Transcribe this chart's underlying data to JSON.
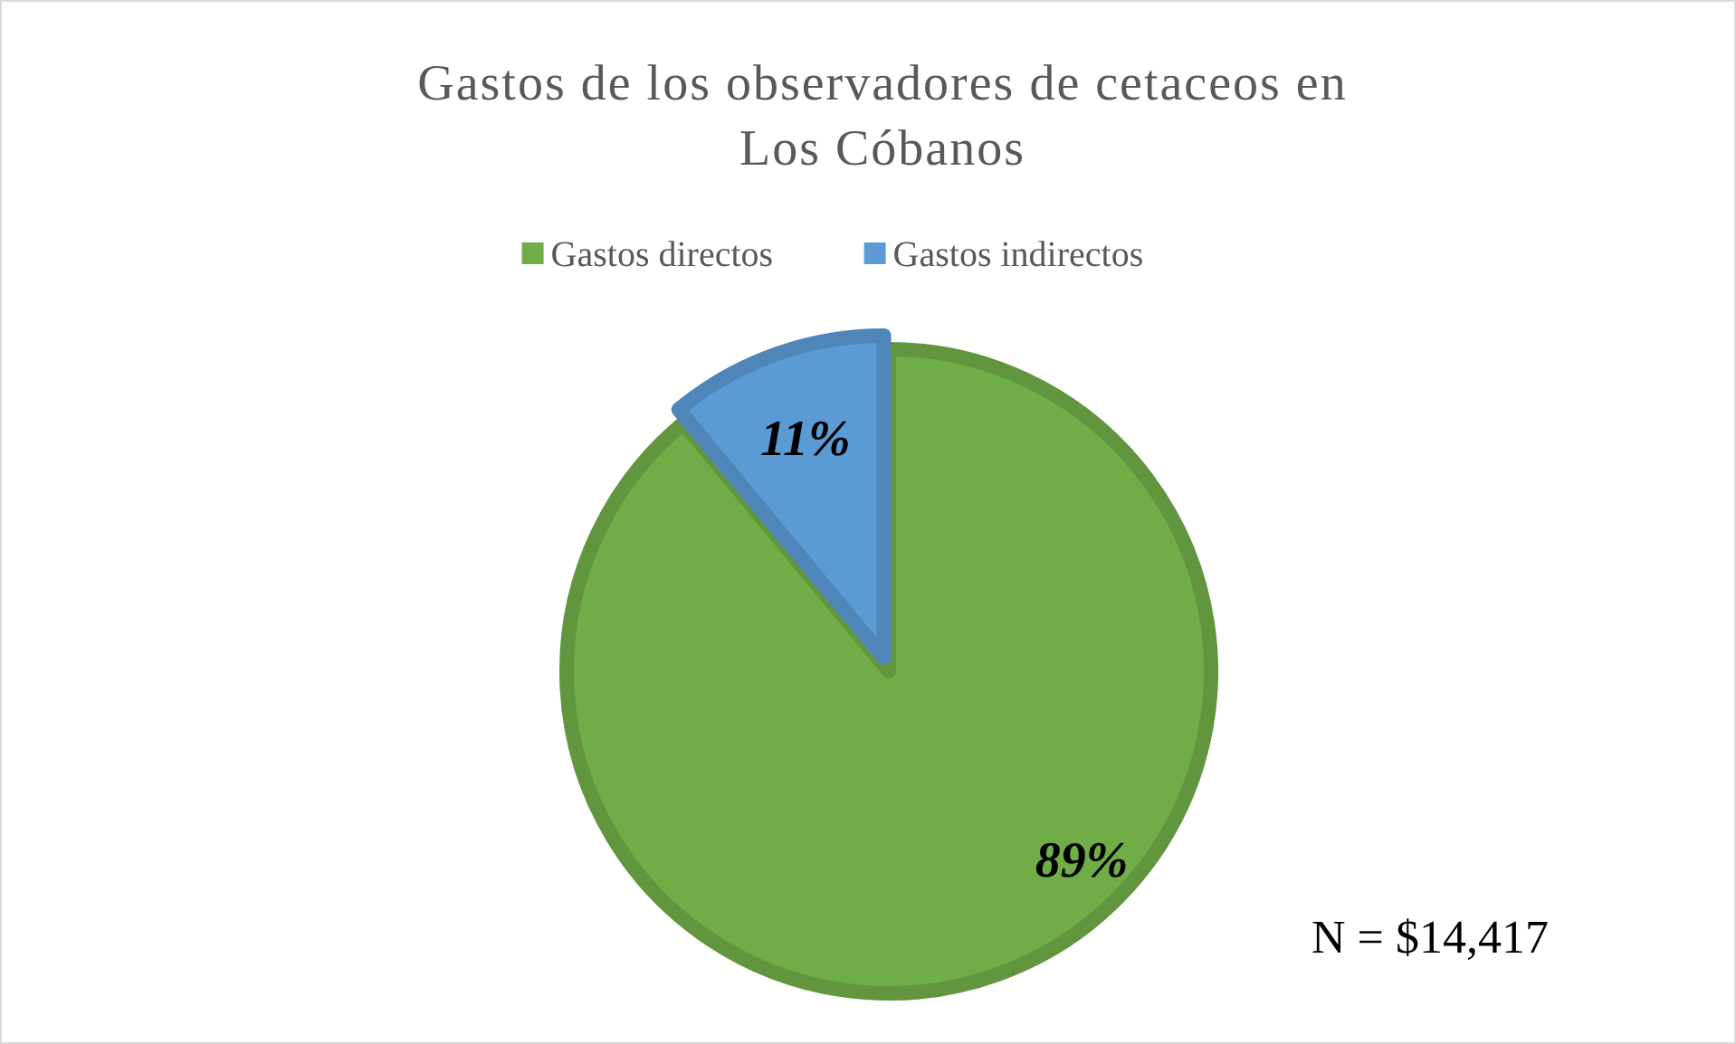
{
  "chart_data": {
    "type": "pie",
    "title": "Gastos de los observadores de cetaceos en\nLos Cóbanos",
    "categories": [
      "Gastos directos",
      "Gastos indirectos"
    ],
    "values": [
      89,
      11
    ],
    "colors": [
      "#70ad47",
      "#5b9bd5"
    ],
    "value_labels": [
      "89%",
      "11%"
    ],
    "legend": "top",
    "annotations": [
      "N = $14,417"
    ]
  }
}
